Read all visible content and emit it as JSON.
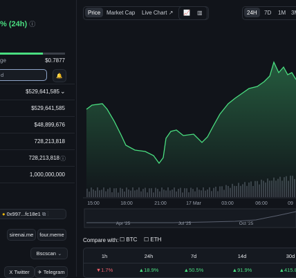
{
  "sidebar": {
    "change_label": "% (24h)",
    "range_left": "ge",
    "range_right": "$0.7877",
    "search_placeholder": "d",
    "rows": [
      "$529,641,585",
      "$529,641,585",
      "$48,899,676",
      "728,213,818",
      "728,213,818",
      "1,000,000,000"
    ],
    "contract": "0x997...fc18e1",
    "links": [
      "sirenai.me",
      "four.meme"
    ],
    "explorer": "Bscscan",
    "socials": [
      "Twitter",
      "Telegram"
    ],
    "social_icon": "X"
  },
  "tabs": [
    "Price",
    "Market Cap",
    "Live Chart"
  ],
  "ranges": [
    "24H",
    "7D",
    "1M",
    "3M"
  ],
  "x_labels": [
    "15:00",
    "18:00",
    "21:00",
    "17 Mar",
    "03:00",
    "06:00",
    "09"
  ],
  "navigator_labels": [
    "Apr '25",
    "Jul '25",
    "Oct '25"
  ],
  "compare": {
    "label": "Compare with:",
    "options": [
      "BTC",
      "ETH"
    ]
  },
  "table": {
    "headers": [
      "1h",
      "24h",
      "7d",
      "14d",
      "30d"
    ],
    "values": [
      "1.7%",
      "18.9%",
      "50.5%",
      "91.9%",
      "415.8%"
    ]
  }
}
